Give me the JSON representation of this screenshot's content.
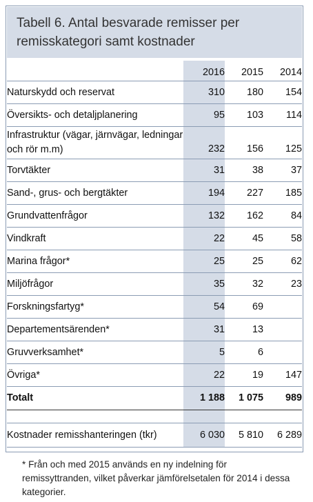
{
  "title": "Tabell 6. Antal besvarade remisser per remisskategori samt kostnader",
  "years": [
    "2016",
    "2015",
    "2014"
  ],
  "rows": [
    {
      "label": "Naturskydd och reservat",
      "v2016": "310",
      "v2015": "180",
      "v2014": "154"
    },
    {
      "label": "Översikts- och detaljplanering",
      "v2016": "95",
      "v2015": "103",
      "v2014": "114"
    },
    {
      "label": "Infrastruktur (vägar, järnvägar, ledningar och rör m.m)",
      "v2016": "232",
      "v2015": "156",
      "v2014": "125"
    },
    {
      "label": "Torvtäkter",
      "v2016": "31",
      "v2015": "38",
      "v2014": "37"
    },
    {
      "label": "Sand-, grus- och bergtäkter",
      "v2016": "194",
      "v2015": "227",
      "v2014": "185"
    },
    {
      "label": "Grundvattenfrågor",
      "v2016": "132",
      "v2015": "162",
      "v2014": "84"
    },
    {
      "label": "Vindkraft",
      "v2016": "22",
      "v2015": "45",
      "v2014": "58"
    },
    {
      "label": "Marina frågor*",
      "v2016": "25",
      "v2015": "25",
      "v2014": "62"
    },
    {
      "label": "Miljöfrågor",
      "v2016": "35",
      "v2015": "32",
      "v2014": "23"
    },
    {
      "label": "Forskningsfartyg*",
      "v2016": "54",
      "v2015": "69",
      "v2014": ""
    },
    {
      "label": "Departementsärenden*",
      "v2016": "31",
      "v2015": "13",
      "v2014": ""
    },
    {
      "label": "Gruvverksamhet*",
      "v2016": "5",
      "v2015": "6",
      "v2014": ""
    },
    {
      "label": "Övriga*",
      "v2016": "22",
      "v2015": "19",
      "v2014": "147"
    }
  ],
  "total": {
    "label": "Totalt",
    "v2016": "1 188",
    "v2015": "1 075",
    "v2014": "989"
  },
  "cost": {
    "label": "Kostnader remisshanteringen (tkr)",
    "v2016": "6 030",
    "v2015": "5 810",
    "v2014": "6 289"
  },
  "footnote": "* Från och med 2015 används en ny indelning för remissyttranden, vilket påverkar jämförelsetalen för 2014 i dessa kategorier."
}
